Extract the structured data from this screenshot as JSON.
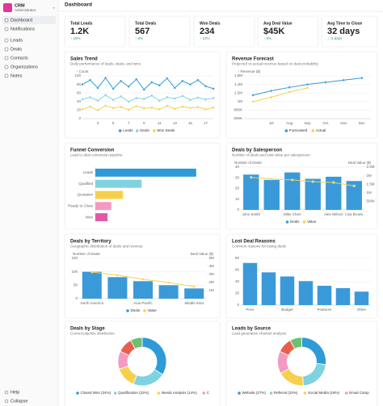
{
  "sidebar": {
    "brand": "CRM",
    "role": "Administrator",
    "nav": [
      "Dashboard",
      "Notifications",
      "Leads",
      "Deals",
      "Contacts",
      "Organizations",
      "Notes"
    ],
    "footer": [
      "Help",
      "Collapse"
    ]
  },
  "header": {
    "title": "Dashboard"
  },
  "kpis": [
    {
      "label": "Total Leads",
      "value": "1.2K",
      "trend": "↑ 15%"
    },
    {
      "label": "Total Deals",
      "value": "567",
      "trend": "↑ 8%"
    },
    {
      "label": "Won Deals",
      "value": "234",
      "trend": "↑ 12%"
    },
    {
      "label": "Avg Deal Value",
      "value": "$45K",
      "trend": "↑ 5%"
    },
    {
      "label": "Avg Time to Close",
      "value": "32 days",
      "trend": "↓ -3 days"
    }
  ],
  "charts": [
    {
      "type": "line",
      "title": "Sales Trend",
      "subtitle": "Daily performance of leads, deals, and wins",
      "ylabel": "↑ Count",
      "x": [
        1,
        2,
        3,
        4,
        5,
        6,
        7,
        8,
        9,
        10,
        11,
        12,
        13,
        14,
        15,
        16,
        17,
        18
      ],
      "xlim": [
        1,
        18
      ],
      "xticks": [
        3,
        5,
        7,
        9,
        11,
        13,
        15,
        17
      ],
      "ylim": [
        0,
        100
      ],
      "yticks": [
        0,
        20,
        40,
        60,
        80,
        100
      ],
      "series": [
        {
          "name": "Leads",
          "color": "#2e9bd6",
          "values": [
            80,
            90,
            72,
            95,
            70,
            88,
            75,
            92,
            68,
            85,
            78,
            94,
            72,
            88,
            80,
            90,
            76,
            70
          ]
        },
        {
          "name": "Deals",
          "color": "#7fd3e0",
          "values": [
            45,
            50,
            42,
            55,
            44,
            52,
            40,
            48,
            46,
            54,
            42,
            50,
            47,
            53,
            44,
            49,
            45,
            48
          ]
        },
        {
          "name": "Won Deals",
          "color": "#f6d04d",
          "values": [
            22,
            28,
            20,
            30,
            25,
            27,
            21,
            29,
            24,
            26,
            22,
            30,
            23,
            28,
            25,
            27,
            22,
            26
          ]
        }
      ]
    },
    {
      "type": "line",
      "title": "Revenue Forecast",
      "subtitle": "Projected vs actual revenue based on deal probability",
      "ylabel": "↑ Revenue ($)",
      "categories": [
        null,
        "Jul",
        "Aug",
        "Sep",
        "Oct",
        "Nov",
        "Dec"
      ],
      "ylim": [
        600000,
        1600000
      ],
      "yticks": [
        {
          "value": 600000,
          "label": "600K"
        },
        {
          "value": 800000,
          "label": "800K"
        },
        {
          "value": 1000000,
          "label": "1M"
        },
        {
          "value": 1200000,
          "label": "1.2M"
        },
        {
          "value": 1400000,
          "label": "1.4M"
        },
        {
          "value": 1600000,
          "label": "1.6M"
        }
      ],
      "series": [
        {
          "name": "Forecasted",
          "color": "#2e9bd6",
          "values": [
            1150000,
            1250000,
            1330000,
            1400000,
            1450000,
            1500000,
            1550000
          ]
        },
        {
          "name": "Actual",
          "color": "#f6d04d",
          "values": [
            1000000,
            1100000,
            1220000,
            1320000,
            null,
            null,
            null
          ]
        }
      ]
    },
    {
      "type": "hbar",
      "title": "Funnel Conversion",
      "subtitle": "Lead to deal conversion pipeline",
      "categories": [
        "Leads",
        "Qualified",
        "Quotation",
        "Ready to Close",
        "Won"
      ],
      "values": [
        1200,
        550,
        330,
        190,
        145
      ],
      "colors": [
        "#2e9bd6",
        "#7fd3e0",
        "#f6d04d",
        "#f49ac1",
        "#e05aa8"
      ],
      "xlim": [
        0,
        1250
      ]
    },
    {
      "type": "combo",
      "title": "Deals by Salesperson",
      "subtitle": "Number of deals and total value per salesperson",
      "ylabel": "Number of Deals",
      "y2label": "Deal Value ($)",
      "categories": [
        "John Smith",
        null,
        "Mike Chen",
        null,
        "Alex Wilson",
        "Lisa Brown"
      ],
      "ylim": [
        0,
        40
      ],
      "yticks": [
        0,
        10,
        20,
        30,
        40
      ],
      "y2lim": [
        0,
        2500000
      ],
      "y2ticks": [
        {
          "value": 500000,
          "label": "500K"
        },
        {
          "value": 1000000,
          "label": "1M"
        },
        {
          "value": 1500000,
          "label": "1.5M"
        },
        {
          "value": 2000000,
          "label": "2M"
        },
        {
          "value": 2500000,
          "label": "2.5M"
        }
      ],
      "series": [
        {
          "name": "Deals",
          "color": "#3a9ad9",
          "values": [
            33,
            28,
            35,
            29,
            31,
            27
          ]
        },
        {
          "name": "Value",
          "color": "#f6d04d",
          "axis": "y2",
          "values": [
            1900000,
            1800000,
            1750000,
            1650000,
            1600000,
            1400000
          ]
        }
      ]
    },
    {
      "type": "combo",
      "title": "Deals by Territory",
      "subtitle": "Geographic distribution of deals and revenue",
      "ylabel": "Number of Deals",
      "y2label": "Deal Value ($)",
      "categories": [
        "North America",
        null,
        "Asia Pacific",
        null,
        "Middle East"
      ],
      "ylim": [
        0,
        150
      ],
      "yticks": [
        0,
        50,
        100,
        150
      ],
      "y2lim": [
        0,
        5000000
      ],
      "y2ticks": [
        {
          "value": 1000000,
          "label": "1M"
        },
        {
          "value": 2000000,
          "label": "2M"
        },
        {
          "value": 3000000,
          "label": "3M"
        },
        {
          "value": 4000000,
          "label": "4M"
        },
        {
          "value": 5000000,
          "label": "5M"
        }
      ],
      "series": [
        {
          "name": "Deals",
          "color": "#3a9ad9",
          "values": [
            100,
            80,
            65,
            50,
            38
          ]
        },
        {
          "name": "Value",
          "color": "#f6d04d",
          "axis": "y2",
          "values": [
            3300000,
            2900000,
            2400000,
            2000000,
            1500000
          ]
        }
      ]
    },
    {
      "type": "combo",
      "title": "Lost Deal Reasons",
      "subtitle": "Common reasons for losing deals",
      "categories": [
        "Price",
        null,
        "Budget",
        null,
        "Features",
        null,
        "Other"
      ],
      "ylim": [
        0,
        80
      ],
      "yticks": [
        0,
        20,
        40,
        60,
        80
      ],
      "series": [
        {
          "color": "#3a9ad9",
          "values": [
            72,
            56,
            49,
            41,
            33,
            29,
            23
          ]
        }
      ]
    },
    {
      "type": "donut",
      "title": "Deals by Stage",
      "subtitle": "Current pipeline distribution",
      "categories": [
        "Closed Won (34%)",
        "Qualification (22%)",
        "Needs Analysis (14%)",
        "C",
        null,
        null
      ],
      "values": [
        34,
        22,
        14,
        12,
        10,
        8
      ],
      "colors": [
        "#2e9bd6",
        "#7fd3e0",
        "#f6d04d",
        "#f49ac1",
        "#e8604c",
        "#6cc070"
      ]
    },
    {
      "type": "donut",
      "title": "Leads by Source",
      "subtitle": "Lead generation channel analysis",
      "categories": [
        "Website (27%)",
        "Referral (22%)",
        "Social Media (18%)",
        "Email Camp",
        null,
        null
      ],
      "values": [
        27,
        22,
        18,
        15,
        10,
        8
      ],
      "colors": [
        "#2e9bd6",
        "#7fd3e0",
        "#f6d04d",
        "#f49ac1",
        "#e8604c",
        "#6cc070"
      ]
    }
  ]
}
